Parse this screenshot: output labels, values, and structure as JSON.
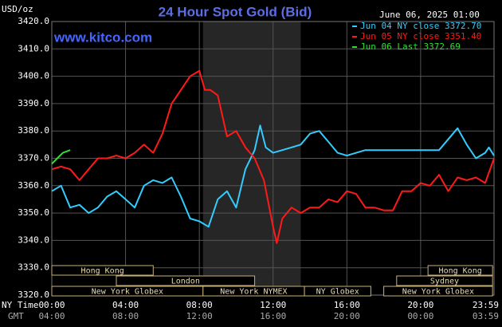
{
  "chart_data": {
    "type": "line",
    "title": "24 Hour Spot Gold (Bid)",
    "date": "June 06, 2025 01:00",
    "y_label": "USD/oz",
    "watermark": "www.kitco.com",
    "x_label": "NY Time",
    "x2_label": "GMT",
    "xlim": [
      0,
      23.98
    ],
    "ylim": [
      3320,
      3420
    ],
    "xticks": [
      {
        "value": 0,
        "label": "00:00"
      },
      {
        "value": 4,
        "label": "04:00"
      },
      {
        "value": 8,
        "label": "08:00"
      },
      {
        "value": 12,
        "label": "12:00"
      },
      {
        "value": 16,
        "label": "16:00"
      },
      {
        "value": 20,
        "label": "20:00"
      },
      {
        "value": 23.98,
        "label": "23:59"
      }
    ],
    "x2tick_labels": [
      "04:00",
      "08:00",
      "12:00",
      "16:00",
      "20:00",
      "00:00",
      "03:59"
    ],
    "yticks": [
      {
        "value": 3320,
        "label": "3320.0"
      },
      {
        "value": 3330,
        "label": "3330.0"
      },
      {
        "value": 3340,
        "label": "3340.0"
      },
      {
        "value": 3350,
        "label": "3350.0"
      },
      {
        "value": 3360,
        "label": "3360.0"
      },
      {
        "value": 3370,
        "label": "3370.0"
      },
      {
        "value": 3380,
        "label": "3380.0"
      },
      {
        "value": 3390,
        "label": "3390.0"
      },
      {
        "value": 3400,
        "label": "3400.0"
      },
      {
        "value": 3410,
        "label": "3410.0"
      },
      {
        "value": 3420,
        "label": "3420.0"
      }
    ],
    "grid": true,
    "shade": [
      8.2,
      13.5
    ],
    "sessions": [
      [
        {
          "label": "Hong Kong",
          "start": 0,
          "end": 5.5
        },
        {
          "label": "Hong Kong",
          "start": 20.4,
          "end": 23.9
        }
      ],
      [
        {
          "label": "London",
          "start": 3.5,
          "end": 11
        },
        {
          "label": "Sydney",
          "start": 18.7,
          "end": 23.9
        }
      ],
      [
        {
          "label": "New York Globex",
          "start": 0,
          "end": 8.2
        },
        {
          "label": "New York NYMEX",
          "start": 8.2,
          "end": 13.7
        },
        {
          "label": "NY Globex",
          "start": 13.7,
          "end": 17.3
        },
        {
          "label": "New York Globex",
          "start": 18,
          "end": 23.9
        }
      ]
    ],
    "series": [
      {
        "name": "Jun 04 NY close 3372.70",
        "color": "#33ccff",
        "x": [
          0,
          0.5,
          1,
          1.5,
          2,
          2.5,
          3,
          3.5,
          4,
          4.5,
          5,
          5.5,
          6,
          6.5,
          7,
          7.5,
          8,
          8.5,
          9,
          9.5,
          10,
          10.5,
          11,
          11.3,
          11.6,
          12,
          12.5,
          13,
          13.5,
          14,
          14.5,
          15,
          15.5,
          16,
          17,
          18,
          19,
          20,
          21,
          22,
          22.5,
          23,
          23.5,
          23.7,
          23.98
        ],
        "values": [
          3358,
          3360,
          3352,
          3353,
          3350,
          3352,
          3356,
          3358,
          3355,
          3352,
          3360,
          3362,
          3361,
          3363,
          3356,
          3348,
          3347,
          3345,
          3355,
          3358,
          3352,
          3366,
          3373,
          3382,
          3374,
          3372,
          3373,
          3374,
          3375,
          3379,
          3380,
          3376,
          3372,
          3371,
          3373,
          3373,
          3373,
          3373,
          3373,
          3381,
          3375,
          3370,
          3372,
          3374,
          3371
        ]
      },
      {
        "name": "Jun 05 NY close 3351.40",
        "color": "#ff1a1a",
        "x": [
          0,
          0.5,
          1,
          1.5,
          2,
          2.5,
          3,
          3.5,
          4,
          4.5,
          5,
          5.5,
          6,
          6.5,
          7,
          7.5,
          8,
          8.3,
          8.6,
          9,
          9.5,
          10,
          10.5,
          11,
          11.5,
          12,
          12.2,
          12.5,
          13,
          13.5,
          14,
          14.5,
          15,
          15.5,
          16,
          16.5,
          17,
          17.5,
          18,
          18.5,
          19,
          19.5,
          20,
          20.5,
          21,
          21.5,
          22,
          22.5,
          23,
          23.5,
          23.98
        ],
        "values": [
          3366,
          3367,
          3366,
          3362,
          3366,
          3370,
          3370,
          3371,
          3370,
          3372,
          3375,
          3372,
          3379,
          3390,
          3395,
          3400,
          3402,
          3395,
          3395,
          3393,
          3378,
          3380,
          3374,
          3370,
          3362,
          3345,
          3339,
          3348,
          3352,
          3350,
          3352,
          3352,
          3355,
          3354,
          3358,
          3357,
          3352,
          3352,
          3351,
          3351,
          3358,
          3358,
          3361,
          3360,
          3364,
          3358,
          3363,
          3362,
          3363,
          3361,
          3370
        ]
      },
      {
        "name": "Jun 06 Last 3372.69",
        "color": "#33dd33",
        "x": [
          0,
          0.3,
          0.6,
          1
        ],
        "values": [
          3368,
          3370,
          3372,
          3373
        ]
      }
    ]
  }
}
